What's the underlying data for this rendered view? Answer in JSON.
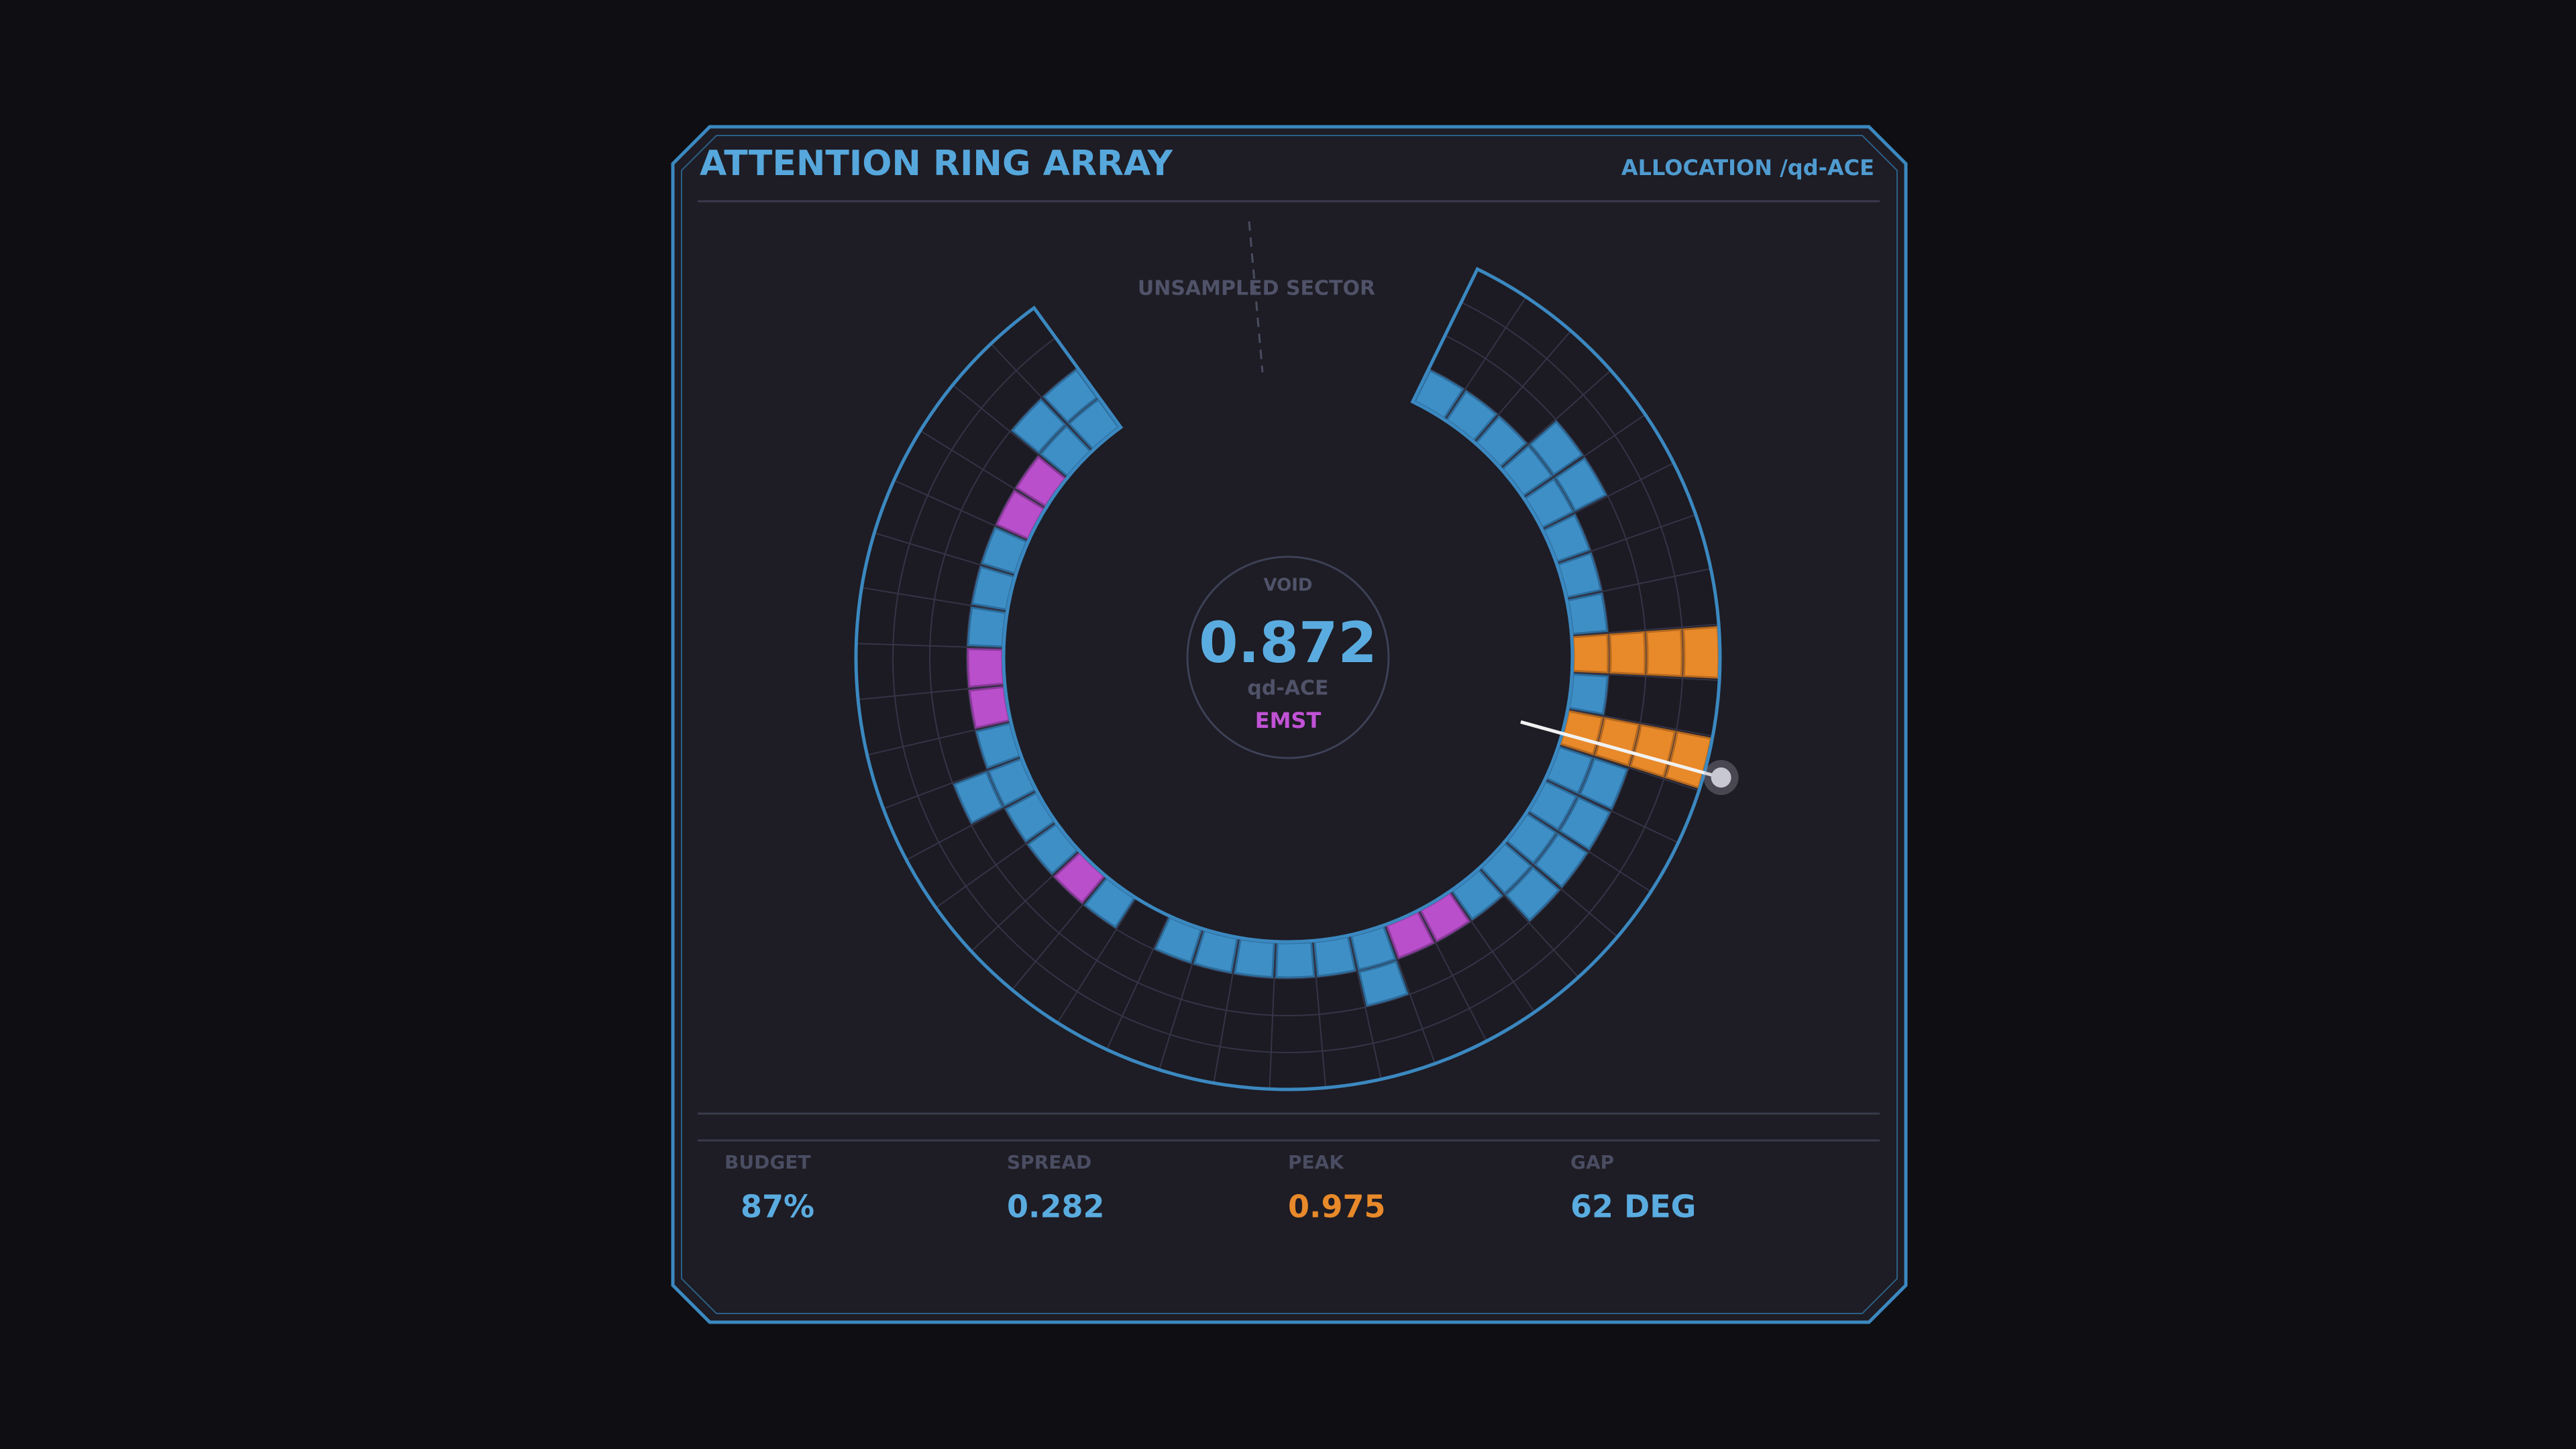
{
  "header": {
    "title": "ATTENTION RING ARRAY",
    "subtitle": "ALLOCATION /qd-ACE"
  },
  "ring": {
    "annotation": "UNSAMPLED SECTOR"
  },
  "center": {
    "label": "VOID",
    "value": "0.872",
    "unit": "qd-ACE",
    "mode": "EMST"
  },
  "stats": [
    {
      "label": "BUDGET",
      "value": "87%"
    },
    {
      "label": "SPREAD",
      "value": "0.282"
    },
    {
      "label": "PEAK",
      "value": "0.975"
    },
    {
      "label": "GAP",
      "value": "62 DEG"
    }
  ]
}
